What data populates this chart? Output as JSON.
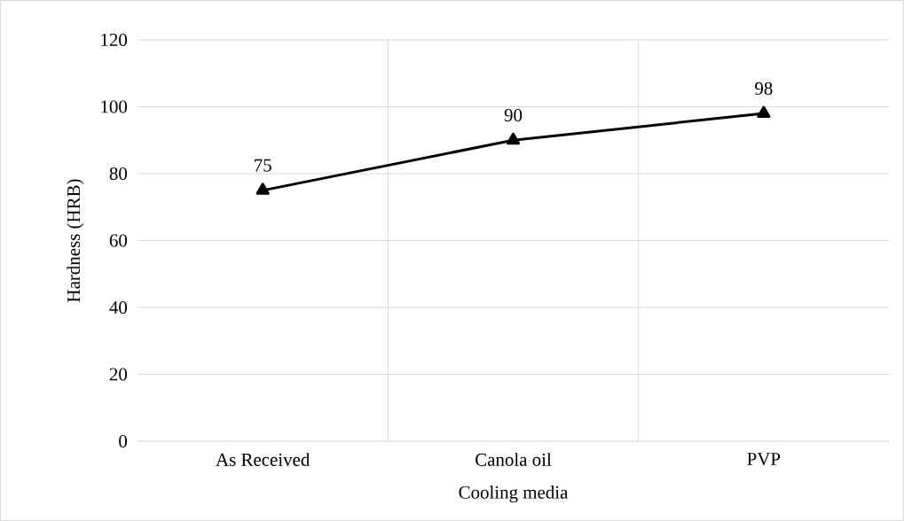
{
  "chart_data": {
    "type": "line",
    "xlabel": "Cooling media",
    "ylabel": "Hardness (HRB)",
    "categories": [
      "As Received",
      "Canola oil",
      "PVP"
    ],
    "values": [
      75,
      90,
      98
    ],
    "color": "#000000",
    "ylim": [
      0,
      120
    ],
    "yticks": [
      0,
      20,
      40,
      60,
      80,
      100,
      120
    ],
    "grid": true,
    "marker": "triangle",
    "line_style": "solid",
    "data_labels": true
  }
}
